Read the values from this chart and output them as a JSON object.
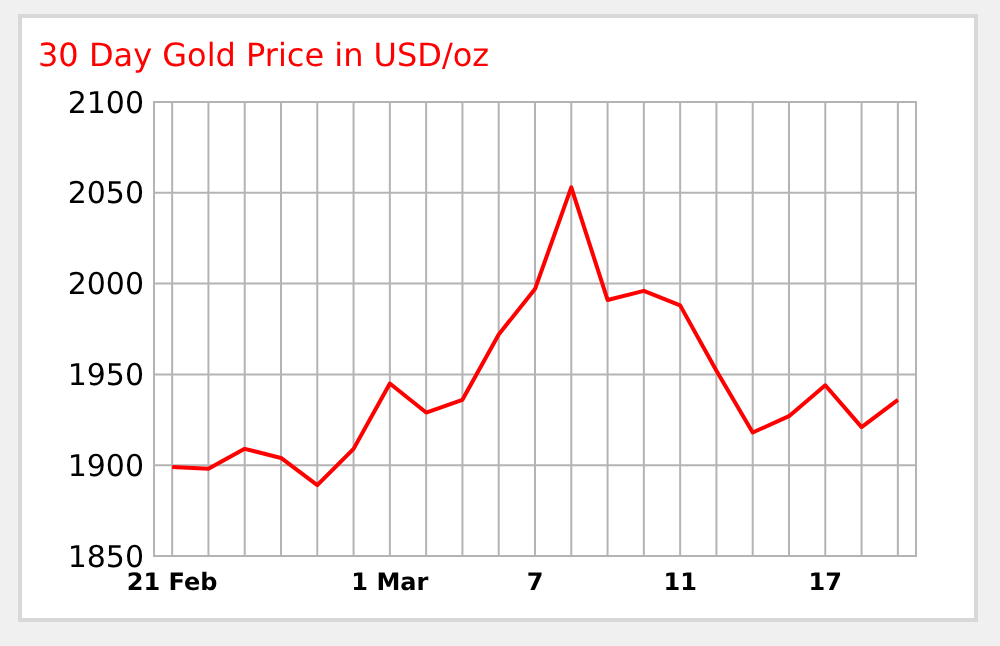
{
  "chart_data": {
    "type": "line",
    "title": "30 Day Gold Price in USD/oz",
    "categories": [
      "21 Feb",
      null,
      null,
      null,
      null,
      null,
      "1 Mar",
      null,
      null,
      null,
      "7",
      null,
      null,
      null,
      "11",
      null,
      null,
      null,
      "17",
      null,
      null
    ],
    "series": [
      {
        "color": "#ff0000",
        "values": [
          1899,
          1898,
          1909,
          1904,
          1889,
          1909,
          1945,
          1929,
          1936,
          1972,
          1997,
          2053,
          1991,
          1996,
          1988,
          1952,
          1918,
          1927,
          1944,
          1921,
          1936
        ]
      }
    ],
    "ylim": [
      1850,
      2100
    ],
    "yticks": [
      1850,
      1900,
      1950,
      2000,
      2050,
      2100
    ],
    "grid": true,
    "marker": "none",
    "line_style": "solid"
  }
}
